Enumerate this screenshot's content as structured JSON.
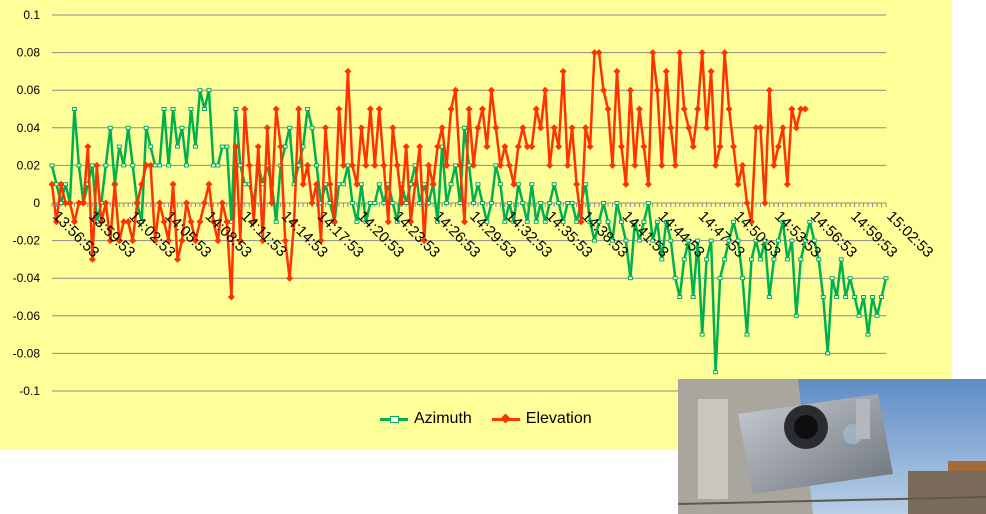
{
  "chart_data": {
    "type": "line",
    "title": "",
    "xlabel": "",
    "ylabel": "",
    "ylim": [
      -0.1,
      0.1
    ],
    "yticks": [
      "0.1",
      "0.08",
      "0.06",
      "0.04",
      "0.02",
      "0",
      "-0.02",
      "-0.04",
      "-0.06",
      "-0.08",
      "-0.1"
    ],
    "xticks": [
      "13:56:53",
      "13:59:53",
      "14:02:53",
      "14:05:53",
      "14:08:53",
      "14:11:53",
      "14:14:53",
      "14:17:53",
      "14:20:53",
      "14:23:53",
      "14:26:53",
      "14:29:53",
      "14:32:53",
      "14:35:53",
      "14:38:53",
      "14:41:53",
      "14:44:53",
      "14:47:53",
      "14:50:53",
      "14:53:53",
      "14:56:53",
      "14:59:53",
      "15:02:53"
    ],
    "grid": true,
    "legend_position": "bottom",
    "series": [
      {
        "name": "Azimuth",
        "color": "#00b050",
        "values": [
          0.02,
          0.01,
          0,
          0.01,
          0,
          0.05,
          0.02,
          0,
          0.01,
          0.02,
          -0.01,
          0,
          0.02,
          0.04,
          0.01,
          0.03,
          0.02,
          0.04,
          0.02,
          0,
          -0.01,
          0.04,
          0.03,
          0.02,
          0.02,
          0.05,
          0.02,
          0.05,
          0.03,
          0.04,
          0.02,
          0.05,
          0.03,
          0.06,
          0.05,
          0.06,
          0.02,
          0.02,
          0.03,
          0.03,
          -0.01,
          0.05,
          0.02,
          0.01,
          0.01,
          0,
          0.02,
          0.01,
          0.02,
          0.01,
          -0.01,
          0.02,
          0.03,
          0.04,
          0.01,
          0.02,
          0.03,
          0.05,
          0.04,
          0.02,
          0,
          0.01,
          0,
          -0.01,
          0.01,
          0.01,
          0.02,
          0,
          -0.01,
          0.01,
          -0.01,
          0,
          0,
          0.01,
          0,
          0.01,
          0,
          -0.01,
          0.01,
          0,
          0.01,
          0.02,
          0,
          0.01,
          0,
          0.01,
          -0.01,
          0.03,
          0,
          0.01,
          0.02,
          0,
          0.04,
          0.02,
          0,
          0.01,
          0,
          -0.01,
          0,
          0.02,
          0.01,
          -0.01,
          0,
          -0.01,
          0.01,
          0,
          -0.01,
          0.01,
          -0.01,
          0,
          -0.01,
          0,
          0.01,
          0,
          -0.01,
          0,
          0,
          -0.01,
          0,
          0.01,
          -0.01,
          -0.02,
          -0.01,
          0,
          -0.01,
          -0.02,
          0,
          -0.01,
          -0.02,
          -0.04,
          -0.01,
          -0.02,
          -0.01,
          0,
          -0.02,
          -0.01,
          -0.03,
          -0.01,
          -0.02,
          -0.04,
          -0.05,
          -0.03,
          -0.02,
          -0.05,
          -0.02,
          -0.07,
          -0.03,
          -0.02,
          -0.09,
          -0.04,
          -0.03,
          -0.02,
          -0.01,
          -0.02,
          -0.04,
          -0.07,
          -0.03,
          -0.02,
          -0.03,
          -0.02,
          -0.05,
          -0.03,
          -0.02,
          -0.01,
          -0.03,
          -0.02,
          -0.06,
          -0.03,
          -0.02,
          -0.01,
          -0.02,
          -0.03,
          -0.05,
          -0.08,
          -0.04,
          -0.05,
          -0.03,
          -0.05,
          -0.04,
          -0.05,
          -0.06,
          -0.05,
          -0.07,
          -0.05,
          -0.06,
          -0.05,
          -0.04
        ]
      },
      {
        "name": "Elevation",
        "color": "#ff3300",
        "values": [
          0.01,
          -0.01,
          0.01,
          0,
          0,
          -0.01,
          0,
          0,
          0.03,
          -0.03,
          0.02,
          -0.01,
          0,
          -0.02,
          0.01,
          -0.02,
          -0.01,
          -0.01,
          -0.02,
          0,
          0.01,
          0.02,
          0.02,
          -0.02,
          0,
          -0.01,
          -0.02,
          0.01,
          -0.03,
          -0.02,
          0,
          -0.01,
          -0.02,
          -0.01,
          0,
          0.01,
          -0.01,
          -0.02,
          0,
          -0.01,
          -0.05,
          0.03,
          -0.02,
          0.05,
          0.02,
          -0.01,
          0.03,
          -0.02,
          0.04,
          0,
          0.05,
          0.03,
          -0.02,
          -0.04,
          -0.01,
          0.05,
          0.01,
          0.02,
          0,
          0.01,
          -0.02,
          0.04,
          0.01,
          -0.01,
          0.05,
          0.02,
          0.07,
          0.02,
          0.01,
          0.04,
          0.02,
          0.05,
          0.02,
          0.05,
          0.02,
          -0.01,
          0.04,
          0.02,
          0,
          0.03,
          -0.01,
          0.01,
          0.03,
          -0.02,
          0.02,
          0.01,
          0.03,
          0.04,
          0.02,
          0.05,
          0.06,
          0.02,
          -0.01,
          0.05,
          0.02,
          0.04,
          0.05,
          0.03,
          0.06,
          0.04,
          0.02,
          0.03,
          0.02,
          0.01,
          0.03,
          0.04,
          0.03,
          0.03,
          0.05,
          0.04,
          0.06,
          0.02,
          0.04,
          0.03,
          0.07,
          0.02,
          0.04,
          0.01,
          -0.01,
          0.04,
          0.03,
          0.08,
          0.08,
          0.06,
          0.05,
          0.02,
          0.07,
          0.03,
          0.01,
          0.06,
          0.02,
          0.05,
          0.03,
          0.01,
          0.08,
          0.06,
          0.02,
          0.07,
          0.04,
          0.02,
          0.08,
          0.05,
          0.04,
          0.03,
          0.05,
          0.08,
          0.04,
          0.07,
          0.02,
          0.03,
          0.08,
          0.05,
          0.03,
          0.01,
          0.02,
          0,
          -0.01,
          0.04,
          0.04,
          0,
          0.06,
          0.02,
          0.03,
          0.04,
          0.01,
          0.05,
          0.04,
          0.05,
          0.05
        ]
      }
    ]
  },
  "photo": {
    "description_icon": "camera-sensor-photo-icon",
    "sky_color": "#6f98c8",
    "metal_color": "#9aa0a8"
  }
}
